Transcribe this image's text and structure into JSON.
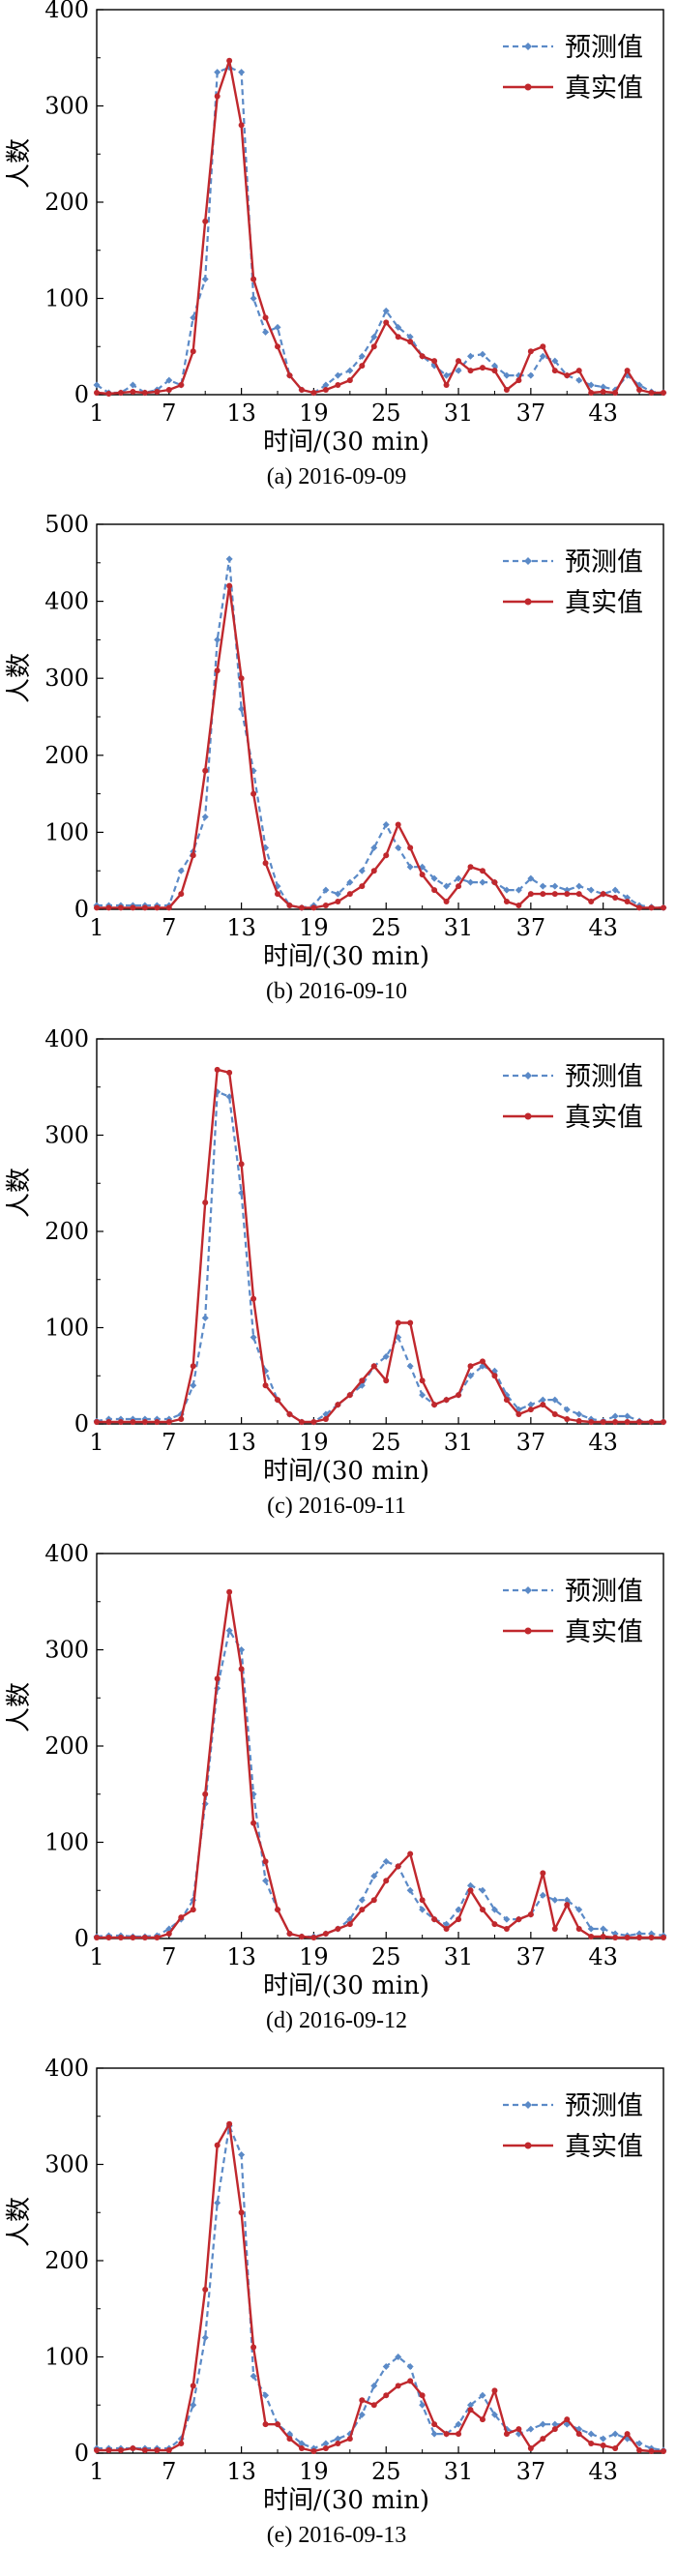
{
  "chart_data": [
    {
      "type": "line",
      "caption": "(a) 2016-09-09",
      "xlabel": "时间/(30 min)",
      "ylabel": "人数",
      "xticks": [
        1,
        7,
        13,
        19,
        25,
        31,
        37,
        43
      ],
      "yticks": [
        0,
        100,
        200,
        300,
        400
      ],
      "xlim": [
        1,
        48
      ],
      "ylim": [
        0,
        400
      ],
      "legend_position": "top-right",
      "x": [
        1,
        2,
        3,
        4,
        5,
        6,
        7,
        8,
        9,
        10,
        11,
        12,
        13,
        14,
        15,
        16,
        17,
        18,
        19,
        20,
        21,
        22,
        23,
        24,
        25,
        26,
        27,
        28,
        29,
        30,
        31,
        32,
        33,
        34,
        35,
        36,
        37,
        38,
        39,
        40,
        41,
        42,
        43,
        44,
        45,
        46,
        47,
        48
      ],
      "series": [
        {
          "name": "预测值",
          "color": "#5b8ac7",
          "dashed": true,
          "values": [
            10,
            2,
            2,
            10,
            2,
            5,
            15,
            10,
            80,
            120,
            335,
            340,
            335,
            100,
            65,
            70,
            20,
            5,
            2,
            10,
            20,
            25,
            40,
            60,
            87,
            70,
            60,
            40,
            30,
            20,
            25,
            40,
            42,
            30,
            20,
            20,
            20,
            40,
            35,
            20,
            15,
            10,
            8,
            5,
            20,
            10,
            3,
            2
          ]
        },
        {
          "name": "真实值",
          "color": "#c0282d",
          "dashed": false,
          "values": [
            2,
            1,
            2,
            3,
            2,
            3,
            5,
            10,
            45,
            180,
            310,
            347,
            280,
            120,
            80,
            50,
            20,
            5,
            2,
            5,
            10,
            15,
            30,
            50,
            75,
            60,
            55,
            40,
            35,
            10,
            35,
            25,
            28,
            25,
            5,
            15,
            45,
            50,
            25,
            20,
            25,
            2,
            3,
            2,
            25,
            5,
            2,
            2
          ]
        }
      ]
    },
    {
      "type": "line",
      "caption": "(b) 2016-09-10",
      "xlabel": "时间/(30 min)",
      "ylabel": "人数",
      "xticks": [
        1,
        7,
        13,
        19,
        25,
        31,
        37,
        43
      ],
      "yticks": [
        0,
        100,
        200,
        300,
        400,
        500
      ],
      "xlim": [
        1,
        48
      ],
      "ylim": [
        0,
        500
      ],
      "legend_position": "top-right",
      "x": [
        1,
        2,
        3,
        4,
        5,
        6,
        7,
        8,
        9,
        10,
        11,
        12,
        13,
        14,
        15,
        16,
        17,
        18,
        19,
        20,
        21,
        22,
        23,
        24,
        25,
        26,
        27,
        28,
        29,
        30,
        31,
        32,
        33,
        34,
        35,
        36,
        37,
        38,
        39,
        40,
        41,
        42,
        43,
        44,
        45,
        46,
        47,
        48
      ],
      "series": [
        {
          "name": "预测值",
          "color": "#5b8ac7",
          "dashed": true,
          "values": [
            5,
            5,
            5,
            5,
            5,
            5,
            5,
            50,
            75,
            120,
            350,
            455,
            260,
            180,
            80,
            30,
            5,
            2,
            5,
            25,
            20,
            35,
            50,
            80,
            110,
            80,
            55,
            55,
            40,
            30,
            40,
            35,
            35,
            35,
            25,
            25,
            40,
            30,
            30,
            25,
            30,
            25,
            20,
            25,
            15,
            5,
            3,
            2
          ]
        },
        {
          "name": "真实值",
          "color": "#c0282d",
          "dashed": false,
          "values": [
            2,
            2,
            2,
            2,
            2,
            2,
            2,
            20,
            70,
            180,
            310,
            420,
            300,
            150,
            60,
            20,
            5,
            2,
            2,
            5,
            10,
            20,
            30,
            50,
            70,
            110,
            80,
            45,
            25,
            10,
            30,
            55,
            50,
            35,
            10,
            5,
            20,
            20,
            20,
            20,
            20,
            10,
            20,
            15,
            10,
            2,
            2,
            2
          ]
        }
      ]
    },
    {
      "type": "line",
      "caption": "(c) 2016-09-11",
      "xlabel": "时间/(30 min)",
      "ylabel": "人数",
      "xticks": [
        1,
        7,
        13,
        19,
        25,
        31,
        37,
        43
      ],
      "yticks": [
        0,
        100,
        200,
        300,
        400
      ],
      "xlim": [
        1,
        48
      ],
      "ylim": [
        0,
        400
      ],
      "legend_position": "top-right",
      "x": [
        1,
        2,
        3,
        4,
        5,
        6,
        7,
        8,
        9,
        10,
        11,
        12,
        13,
        14,
        15,
        16,
        17,
        18,
        19,
        20,
        21,
        22,
        23,
        24,
        25,
        26,
        27,
        28,
        29,
        30,
        31,
        32,
        33,
        34,
        35,
        36,
        37,
        38,
        39,
        40,
        41,
        42,
        43,
        44,
        45,
        46,
        47,
        48
      ],
      "series": [
        {
          "name": "预测值",
          "color": "#5b8ac7",
          "dashed": true,
          "values": [
            3,
            5,
            5,
            5,
            5,
            5,
            5,
            10,
            40,
            110,
            345,
            340,
            240,
            90,
            55,
            25,
            10,
            2,
            2,
            10,
            20,
            30,
            40,
            60,
            70,
            90,
            60,
            30,
            20,
            25,
            30,
            50,
            60,
            55,
            30,
            15,
            20,
            25,
            25,
            15,
            10,
            5,
            3,
            8,
            8,
            3,
            2,
            2
          ]
        },
        {
          "name": "真实值",
          "color": "#c0282d",
          "dashed": false,
          "values": [
            2,
            2,
            2,
            2,
            2,
            2,
            2,
            5,
            60,
            230,
            368,
            365,
            270,
            130,
            40,
            25,
            10,
            2,
            2,
            5,
            20,
            30,
            45,
            60,
            45,
            105,
            105,
            45,
            20,
            25,
            30,
            60,
            65,
            50,
            25,
            10,
            15,
            20,
            10,
            5,
            3,
            2,
            2,
            2,
            2,
            2,
            2,
            2
          ]
        }
      ]
    },
    {
      "type": "line",
      "caption": "(d) 2016-09-12",
      "xlabel": "时间/(30 min)",
      "ylabel": "人数",
      "xticks": [
        1,
        7,
        13,
        19,
        25,
        31,
        37,
        43
      ],
      "yticks": [
        0,
        100,
        200,
        300,
        400
      ],
      "xlim": [
        1,
        48
      ],
      "ylim": [
        0,
        400
      ],
      "legend_position": "top-right",
      "x": [
        1,
        2,
        3,
        4,
        5,
        6,
        7,
        8,
        9,
        10,
        11,
        12,
        13,
        14,
        15,
        16,
        17,
        18,
        19,
        20,
        21,
        22,
        23,
        24,
        25,
        26,
        27,
        28,
        29,
        30,
        31,
        32,
        33,
        34,
        35,
        36,
        37,
        38,
        39,
        40,
        41,
        42,
        43,
        44,
        45,
        46,
        47,
        48
      ],
      "series": [
        {
          "name": "预测值",
          "color": "#5b8ac7",
          "dashed": true,
          "values": [
            2,
            3,
            3,
            2,
            2,
            3,
            10,
            20,
            40,
            140,
            260,
            320,
            300,
            150,
            60,
            30,
            5,
            2,
            2,
            5,
            10,
            20,
            40,
            65,
            80,
            75,
            50,
            30,
            20,
            15,
            30,
            55,
            50,
            30,
            20,
            20,
            25,
            45,
            40,
            40,
            30,
            10,
            10,
            5,
            3,
            5,
            5,
            3
          ]
        },
        {
          "name": "真实值",
          "color": "#c0282d",
          "dashed": false,
          "values": [
            1,
            1,
            1,
            1,
            1,
            1,
            5,
            22,
            30,
            150,
            270,
            360,
            280,
            120,
            80,
            30,
            5,
            2,
            1,
            5,
            10,
            15,
            30,
            40,
            60,
            75,
            88,
            40,
            20,
            10,
            20,
            50,
            30,
            15,
            10,
            20,
            25,
            68,
            10,
            35,
            10,
            2,
            2,
            1,
            1,
            1,
            1,
            1
          ]
        }
      ]
    },
    {
      "type": "line",
      "caption": "(e) 2016-09-13",
      "xlabel": "时间/(30 min)",
      "ylabel": "人数",
      "xticks": [
        1,
        7,
        13,
        19,
        25,
        31,
        37,
        43
      ],
      "yticks": [
        0,
        100,
        200,
        300,
        400
      ],
      "xlim": [
        1,
        48
      ],
      "ylim": [
        0,
        400
      ],
      "legend_position": "top-right",
      "x": [
        1,
        2,
        3,
        4,
        5,
        6,
        7,
        8,
        9,
        10,
        11,
        12,
        13,
        14,
        15,
        16,
        17,
        18,
        19,
        20,
        21,
        22,
        23,
        24,
        25,
        26,
        27,
        28,
        29,
        30,
        31,
        32,
        33,
        34,
        35,
        36,
        37,
        38,
        39,
        40,
        41,
        42,
        43,
        44,
        45,
        46,
        47,
        48
      ],
      "series": [
        {
          "name": "预测值",
          "color": "#5b8ac7",
          "dashed": true,
          "values": [
            5,
            5,
            5,
            5,
            5,
            5,
            5,
            15,
            50,
            120,
            260,
            340,
            310,
            80,
            60,
            30,
            20,
            10,
            5,
            10,
            15,
            20,
            40,
            70,
            90,
            100,
            90,
            50,
            20,
            20,
            30,
            50,
            60,
            40,
            25,
            20,
            25,
            30,
            30,
            30,
            25,
            20,
            15,
            20,
            15,
            10,
            5,
            3
          ]
        },
        {
          "name": "真实值",
          "color": "#c0282d",
          "dashed": false,
          "values": [
            3,
            3,
            3,
            5,
            3,
            3,
            3,
            10,
            70,
            170,
            320,
            342,
            250,
            110,
            30,
            30,
            15,
            5,
            2,
            5,
            10,
            15,
            55,
            50,
            60,
            70,
            75,
            60,
            30,
            20,
            20,
            45,
            35,
            65,
            20,
            25,
            5,
            15,
            25,
            35,
            20,
            10,
            8,
            5,
            20,
            3,
            2,
            2
          ]
        }
      ]
    }
  ]
}
